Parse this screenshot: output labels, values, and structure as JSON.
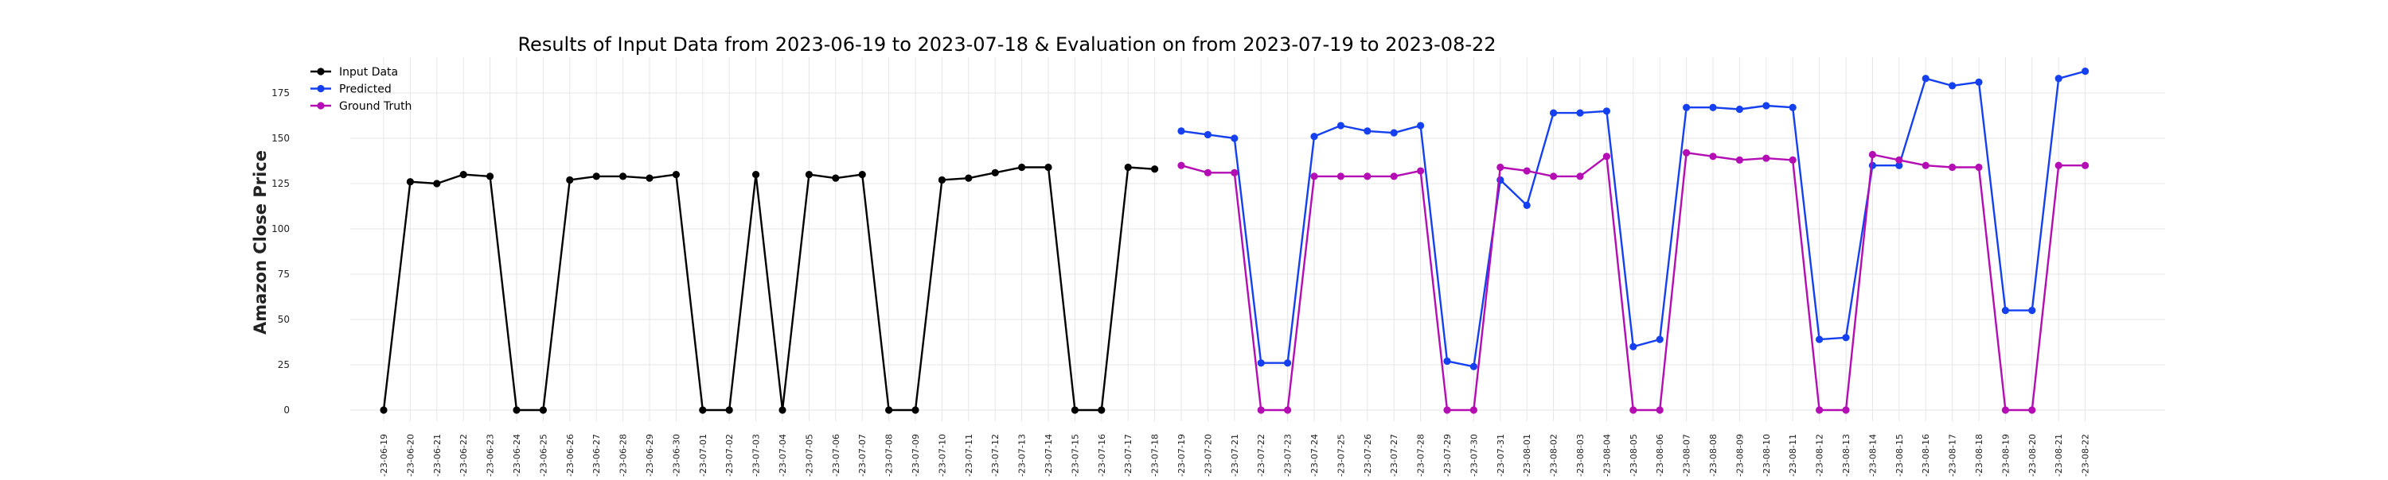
{
  "chart_data": {
    "type": "line",
    "title": "Results of Input Data from 2023-06-19 to 2023-07-18 & Evaluation on from 2023-07-19 to 2023-08-22",
    "xlabel": "",
    "ylabel": "Amazon Close Price",
    "ylim": [
      -8,
      192
    ],
    "yticks": [
      0,
      25,
      50,
      75,
      100,
      125,
      150,
      175
    ],
    "grid": true,
    "legend_position": "top-left",
    "x": [
      "2023-06-19",
      "2023-06-20",
      "2023-06-21",
      "2023-06-22",
      "2023-06-23",
      "2023-06-24",
      "2023-06-25",
      "2023-06-26",
      "2023-06-27",
      "2023-06-28",
      "2023-06-29",
      "2023-06-30",
      "2023-07-01",
      "2023-07-02",
      "2023-07-03",
      "2023-07-04",
      "2023-07-05",
      "2023-07-06",
      "2023-07-07",
      "2023-07-08",
      "2023-07-09",
      "2023-07-10",
      "2023-07-11",
      "2023-07-12",
      "2023-07-13",
      "2023-07-14",
      "2023-07-15",
      "2023-07-16",
      "2023-07-17",
      "2023-07-18",
      "2023-07-19",
      "2023-07-20",
      "2023-07-21",
      "2023-07-22",
      "2023-07-23",
      "2023-07-24",
      "2023-07-25",
      "2023-07-26",
      "2023-07-27",
      "2023-07-28",
      "2023-07-29",
      "2023-07-30",
      "2023-07-31",
      "2023-08-01",
      "2023-08-02",
      "2023-08-03",
      "2023-08-04",
      "2023-08-05",
      "2023-08-06",
      "2023-08-07",
      "2023-08-08",
      "2023-08-09",
      "2023-08-10",
      "2023-08-11",
      "2023-08-12",
      "2023-08-13",
      "2023-08-14",
      "2023-08-15",
      "2023-08-16",
      "2023-08-17",
      "2023-08-18",
      "2023-08-19",
      "2023-08-20",
      "2023-08-21",
      "2023-08-22"
    ],
    "xtick_labels": [
      "-23-06-19",
      "-23-06-20",
      "-23-06-21",
      "-23-06-22",
      "-23-06-23",
      "-23-06-24",
      "-23-06-25",
      "-23-06-26",
      "-23-06-27",
      "-23-06-28",
      "-23-06-29",
      "-23-06-30",
      "-23-07-01",
      "-23-07-02",
      "-23-07-03",
      "-23-07-04",
      "-23-07-05",
      "-23-07-06",
      "-23-07-07",
      "-23-07-08",
      "-23-07-09",
      "-23-07-10",
      "-23-07-11",
      "-23-07-12",
      "-23-07-13",
      "-23-07-14",
      "-23-07-15",
      "-23-07-16",
      "-23-07-17",
      "-23-07-18",
      "-23-07-19",
      "-23-07-20",
      "-23-07-21",
      "-23-07-22",
      "-23-07-23",
      "-23-07-24",
      "-23-07-25",
      "-23-07-26",
      "-23-07-27",
      "-23-07-28",
      "-23-07-29",
      "-23-07-30",
      "-23-07-31",
      "-23-08-01",
      "-23-08-02",
      "-23-08-03",
      "-23-08-04",
      "-23-08-05",
      "-23-08-06",
      "-23-08-07",
      "-23-08-08",
      "-23-08-09",
      "-23-08-10",
      "-23-08-11",
      "-23-08-12",
      "-23-08-13",
      "-23-08-14",
      "-23-08-15",
      "-23-08-16",
      "-23-08-17",
      "-23-08-18",
      "-23-08-19",
      "-23-08-20",
      "-23-08-21",
      "-23-08-22"
    ],
    "series": [
      {
        "name": "Input Data",
        "color": "#000000",
        "x": [
          "2023-06-19",
          "2023-06-20",
          "2023-06-21",
          "2023-06-22",
          "2023-06-23",
          "2023-06-24",
          "2023-06-25",
          "2023-06-26",
          "2023-06-27",
          "2023-06-28",
          "2023-06-29",
          "2023-06-30",
          "2023-07-01",
          "2023-07-02",
          "2023-07-03",
          "2023-07-04",
          "2023-07-05",
          "2023-07-06",
          "2023-07-07",
          "2023-07-08",
          "2023-07-09",
          "2023-07-10",
          "2023-07-11",
          "2023-07-12",
          "2023-07-13",
          "2023-07-14",
          "2023-07-15",
          "2023-07-16",
          "2023-07-17",
          "2023-07-18"
        ],
        "values": [
          0,
          126,
          125,
          130,
          129,
          0,
          0,
          127,
          129,
          129,
          128,
          130,
          0,
          0,
          130,
          0,
          130,
          128,
          130,
          0,
          0,
          127,
          128,
          131,
          134,
          134,
          0,
          0,
          134,
          133
        ]
      },
      {
        "name": "Predicted",
        "color": "#1440f0",
        "x": [
          "2023-07-19",
          "2023-07-20",
          "2023-07-21",
          "2023-07-22",
          "2023-07-23",
          "2023-07-24",
          "2023-07-25",
          "2023-07-26",
          "2023-07-27",
          "2023-07-28",
          "2023-07-29",
          "2023-07-30",
          "2023-07-31",
          "2023-08-01",
          "2023-08-02",
          "2023-08-03",
          "2023-08-04",
          "2023-08-05",
          "2023-08-06",
          "2023-08-07",
          "2023-08-08",
          "2023-08-09",
          "2023-08-10",
          "2023-08-11",
          "2023-08-12",
          "2023-08-13",
          "2023-08-14",
          "2023-08-15",
          "2023-08-16",
          "2023-08-17",
          "2023-08-18",
          "2023-08-19",
          "2023-08-20",
          "2023-08-21",
          "2023-08-22"
        ],
        "values": [
          154,
          152,
          150,
          26,
          26,
          151,
          157,
          154,
          153,
          157,
          27,
          24,
          127,
          113,
          164,
          164,
          165,
          35,
          39,
          167,
          167,
          166,
          168,
          167,
          39,
          40,
          135,
          135,
          183,
          179,
          181,
          55,
          55,
          183,
          187
        ]
      },
      {
        "name": "Ground Truth",
        "color": "#b30db3",
        "x": [
          "2023-07-19",
          "2023-07-20",
          "2023-07-21",
          "2023-07-22",
          "2023-07-23",
          "2023-07-24",
          "2023-07-25",
          "2023-07-26",
          "2023-07-27",
          "2023-07-28",
          "2023-07-29",
          "2023-07-30",
          "2023-07-31",
          "2023-08-01",
          "2023-08-02",
          "2023-08-03",
          "2023-08-04",
          "2023-08-05",
          "2023-08-06",
          "2023-08-07",
          "2023-08-08",
          "2023-08-09",
          "2023-08-10",
          "2023-08-11",
          "2023-08-12",
          "2023-08-13",
          "2023-08-14",
          "2023-08-15",
          "2023-08-16",
          "2023-08-17",
          "2023-08-18",
          "2023-08-19",
          "2023-08-20",
          "2023-08-21",
          "2023-08-22"
        ],
        "values": [
          135,
          131,
          131,
          0,
          0,
          129,
          129,
          129,
          129,
          132,
          0,
          0,
          134,
          132,
          129,
          129,
          140,
          0,
          0,
          142,
          140,
          138,
          139,
          138,
          0,
          0,
          141,
          138,
          135,
          134,
          134,
          0,
          0,
          135,
          135
        ]
      }
    ]
  }
}
